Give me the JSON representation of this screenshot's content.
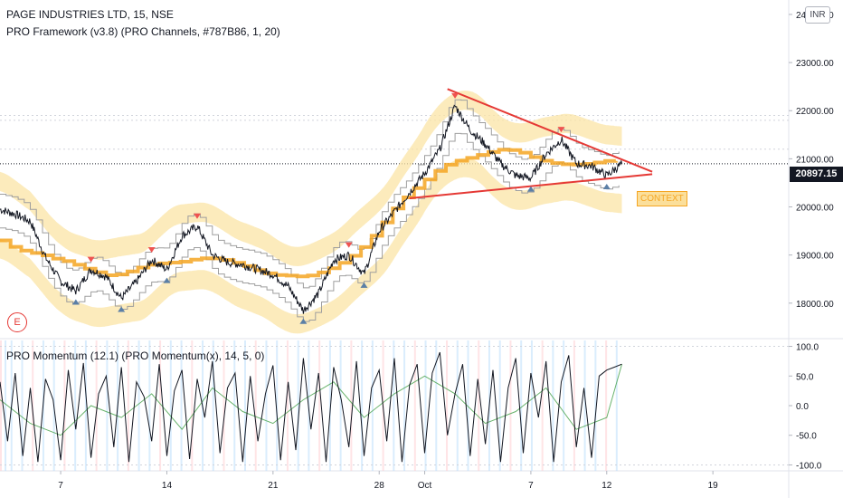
{
  "header": {
    "symbol": "PAGE INDUSTRIES LTD, 15, NSE",
    "indicator": "PRO Framework (v3.8) (PRO Channels, #787B86, 1, 20)"
  },
  "currency": "INR",
  "last_price": "20897.15",
  "badge": "E",
  "context_label": "CONTEXT",
  "momentum_label": "PRO Momentum (12.1) (PRO Momentum(x), 14, 5, 0)",
  "colors": {
    "price": "#131722",
    "channel": "#9e9e9e",
    "trend": "#f5a623",
    "band": "#fbe4a6",
    "trendline": "#e53935",
    "down_marker": "#ef5350",
    "up_marker": "#5b7fa6",
    "osc_fast": "#131722",
    "osc_slow": "#43a047"
  },
  "chart_data": [
    {
      "type": "line",
      "title": "PAGE INDUSTRIES LTD, 15, NSE",
      "ylim": [
        17300,
        24300
      ],
      "y_ticks": [
        "24000.00",
        "23000.00",
        "22000.00",
        "21000.00",
        "20000.00",
        "19000.00",
        "18000.00"
      ],
      "x_ticks": [
        "7",
        "14",
        "21",
        "28",
        "Oct",
        "7",
        "12",
        "19"
      ],
      "x_range_days": [
        0,
        52
      ],
      "x_tick_days": [
        4,
        11,
        18,
        25,
        28,
        35,
        40,
        47
      ],
      "last_value": 20897.15,
      "series": [
        {
          "x": [
            0,
            1,
            2,
            3,
            4,
            5,
            6,
            7,
            8,
            9,
            10,
            11,
            12,
            13,
            14,
            15,
            16,
            17,
            18,
            19,
            20,
            21,
            22,
            23,
            24,
            25,
            26,
            27,
            28,
            29,
            30,
            31,
            32,
            33,
            34,
            35,
            36,
            37,
            38,
            39,
            40,
            41
          ],
          "values": [
            19950,
            19850,
            19700,
            18950,
            18450,
            18250,
            18700,
            18550,
            18100,
            18450,
            18900,
            18700,
            19400,
            19600,
            19000,
            18850,
            18800,
            18700,
            18600,
            18350,
            17850,
            18200,
            18900,
            19000,
            18600,
            19500,
            19900,
            20300,
            20700,
            21200,
            22100,
            21600,
            21300,
            20900,
            20650,
            20600,
            21100,
            21400,
            20900,
            20850,
            20650,
            20897.15
          ]
        }
      ],
      "trendlines": [
        {
          "from": [
            29.5,
            22450
          ],
          "to": [
            43,
            20730
          ]
        },
        {
          "from": [
            27,
            20180
          ],
          "to": [
            43,
            20680
          ]
        }
      ],
      "levels": [
        21900,
        21800,
        21200,
        20897.15
      ]
    },
    {
      "type": "line",
      "title": "PRO Momentum (12.1) (PRO Momentum(x), 14, 5, 0)",
      "ylim": [
        -110,
        110
      ],
      "y_ticks": [
        "100.0",
        "50.0",
        "0.0",
        "-50.0",
        "-100.0"
      ],
      "series": [
        {
          "x": [
            0,
            0.5,
            1,
            1.5,
            2,
            2.5,
            3,
            3.5,
            4,
            4.5,
            5,
            5.5,
            6,
            6.5,
            7,
            7.5,
            8,
            8.5,
            9,
            9.5,
            10,
            10.5,
            11,
            11.5,
            12,
            12.5,
            13,
            13.5,
            14,
            14.5,
            15,
            15.5,
            16,
            16.5,
            17,
            17.5,
            18,
            18.5,
            19,
            19.5,
            20,
            20.5,
            21,
            21.5,
            22,
            22.5,
            23,
            23.5,
            24,
            24.5,
            25,
            25.5,
            26,
            26.5,
            27,
            27.5,
            28,
            28.5,
            29,
            29.5,
            30,
            30.5,
            31,
            31.5,
            32,
            32.5,
            33,
            33.5,
            34,
            34.5,
            35,
            35.5,
            36,
            36.5,
            37,
            37.5,
            38,
            38.5,
            39,
            39.5,
            40,
            40.5,
            41
          ],
          "values": [
            40,
            -60,
            55,
            -85,
            30,
            -95,
            45,
            10,
            -92,
            60,
            -40,
            72,
            -88,
            20,
            50,
            -70,
            65,
            -95,
            40,
            15,
            -60,
            70,
            -85,
            25,
            60,
            -90,
            45,
            -20,
            75,
            -80,
            30,
            55,
            -95,
            50,
            -60,
            20,
            68,
            -92,
            40,
            -75,
            80,
            -40,
            55,
            -95,
            65,
            10,
            -70,
            75,
            -85,
            30,
            60,
            -60,
            80,
            -95,
            35,
            70,
            -80,
            55,
            90,
            -50,
            20,
            70,
            -85,
            45,
            -65,
            60,
            -95,
            30,
            80,
            -80,
            55,
            -20,
            75,
            -95,
            40,
            85,
            -70,
            30,
            -88,
            50,
            60,
            65,
            70
          ]
        },
        {
          "x": [
            0,
            2,
            4,
            6,
            8,
            10,
            12,
            14,
            16,
            18,
            20,
            22,
            24,
            26,
            28,
            30,
            32,
            34,
            36,
            38,
            40,
            41
          ],
          "values": [
            10,
            -30,
            -50,
            0,
            -20,
            20,
            -40,
            30,
            -10,
            -30,
            10,
            40,
            -20,
            20,
            50,
            20,
            -30,
            -10,
            30,
            -40,
            -20,
            70
          ]
        }
      ]
    }
  ]
}
